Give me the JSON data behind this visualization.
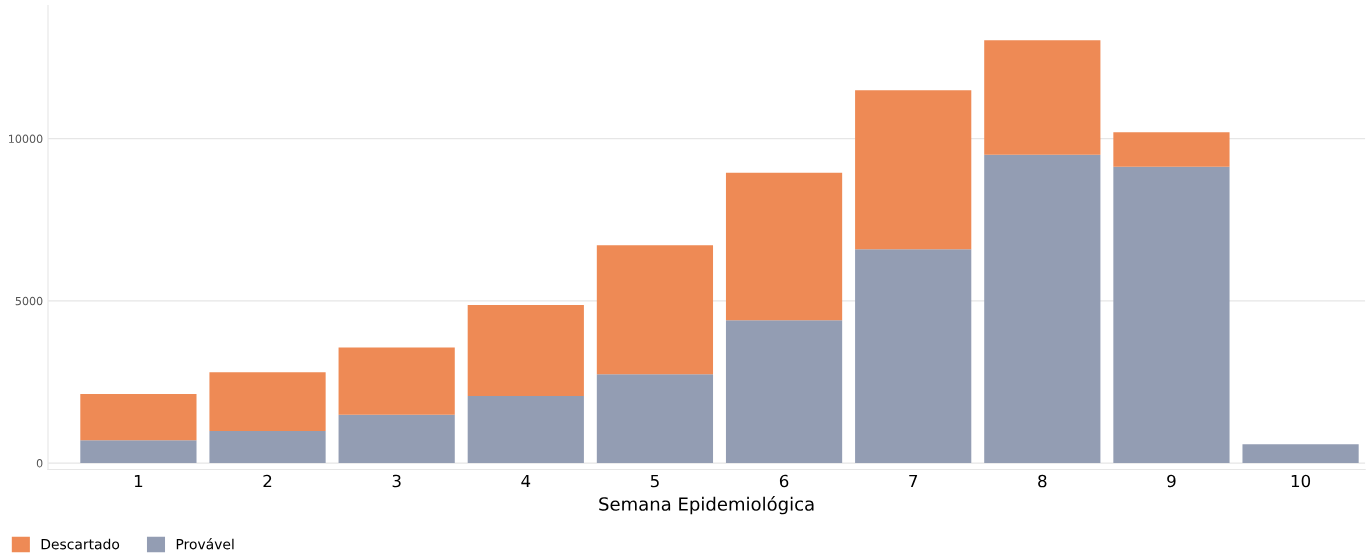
{
  "chart_data": {
    "type": "bar",
    "stacked": true,
    "xlabel": "Semana Epidemiológica",
    "categories": [
      "1",
      "2",
      "3",
      "4",
      "5",
      "6",
      "7",
      "8",
      "9",
      "10"
    ],
    "series": [
      {
        "name": "Provável",
        "color": "#939db3",
        "values": [
          700,
          990,
          1490,
          2070,
          2740,
          4400,
          6590,
          9500,
          9130,
          580
        ]
      },
      {
        "name": "Descartado",
        "color": "#ee8a55",
        "values": [
          1430,
          1810,
          2070,
          2800,
          3970,
          4550,
          4900,
          3530,
          1070,
          null
        ]
      }
    ],
    "ylim": [
      -200,
      14100
    ],
    "yticks": [
      0,
      5000,
      10000
    ],
    "grid": "y",
    "legend": "bottom left"
  }
}
